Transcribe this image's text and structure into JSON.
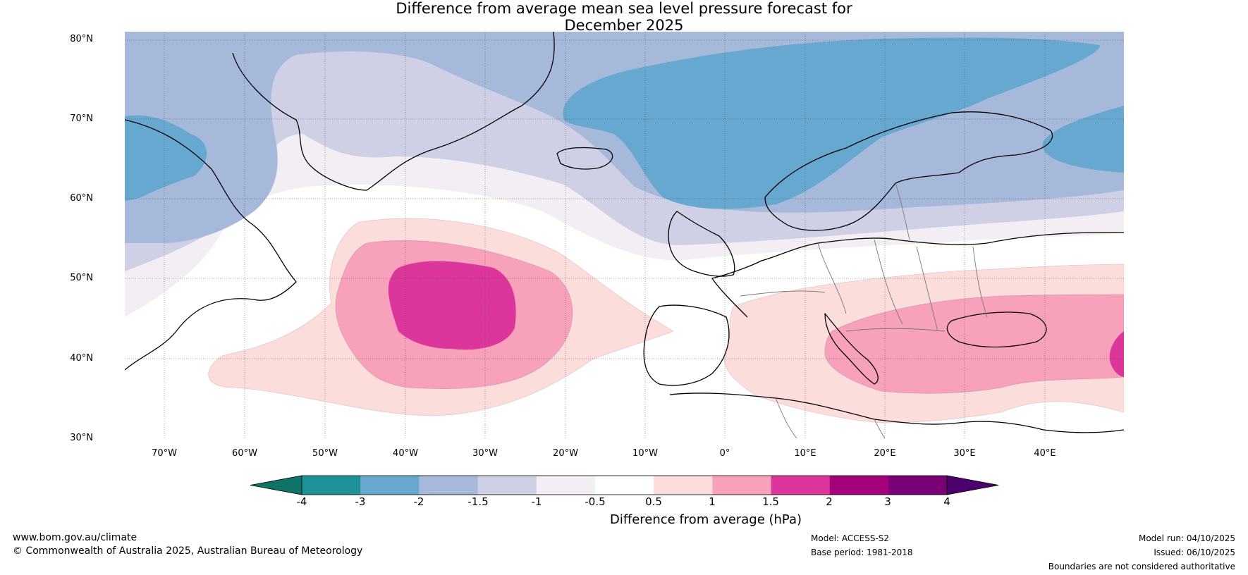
{
  "title_line1": "Difference from average mean sea level pressure forecast for",
  "title_line2": "December 2025",
  "latitudes": [
    "80°N",
    "70°N",
    "60°N",
    "50°N",
    "40°N",
    "30°N"
  ],
  "longitudes": [
    "70°W",
    "60°W",
    "50°W",
    "40°W",
    "30°W",
    "20°W",
    "10°W",
    "0°",
    "10°E",
    "20°E",
    "30°E",
    "40°E"
  ],
  "colorbar": {
    "label": "Difference from average (hPa)",
    "ticks": [
      "-4",
      "-3",
      "-2",
      "-1.5",
      "-1",
      "-0.5",
      "0.5",
      "1",
      "1.5",
      "2",
      "3",
      "4"
    ],
    "colors": [
      "#0f7468",
      "#1e9199",
      "#66a8d0",
      "#a6b9da",
      "#cfd0e6",
      "#f3edf4",
      "#ffffff",
      "#fbdedc",
      "#f8a1bb",
      "#dc369c",
      "#a4007c",
      "#790076",
      "#4b006b"
    ]
  },
  "footer": {
    "website": "www.bom.gov.au/climate",
    "copyright": "© Commonwealth of Australia 2025, Australian Bureau of Meteorology",
    "model": "Model: ACCESS-S2",
    "base_period": "Base period: 1981-2018",
    "model_run": "Model run: 04/10/2025",
    "issued": "Issued: 06/10/2025",
    "disclaimer": "Boundaries are not considered authoritative"
  }
}
